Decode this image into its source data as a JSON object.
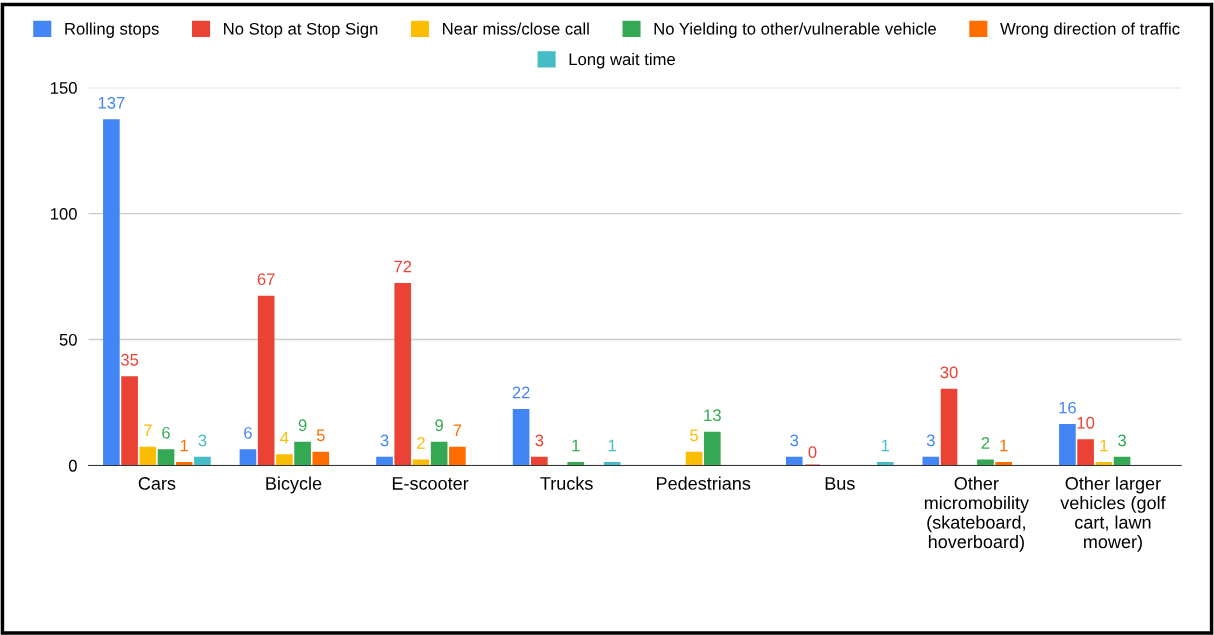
{
  "chart_data": {
    "type": "bar",
    "categories": [
      "Cars",
      "Bicycle",
      "E-scooter",
      "Trucks",
      "Pedestrians",
      "Bus",
      "Other\nmicromobility\n(skateboard,\nhoverboard)",
      "Other larger\nvehicles (golf\ncart, lawn\nmower)"
    ],
    "series": [
      {
        "name": "Rolling stops",
        "color": "#4285f4",
        "values": [
          137,
          6,
          3,
          22,
          null,
          3,
          3,
          16
        ]
      },
      {
        "name": "No Stop at Stop Sign",
        "color": "#ea4335",
        "values": [
          35,
          67,
          72,
          3,
          null,
          0,
          30,
          10
        ]
      },
      {
        "name": "Near miss/close call",
        "color": "#fbbc04",
        "values": [
          7,
          4,
          2,
          null,
          5,
          null,
          null,
          1
        ]
      },
      {
        "name": "No Yielding to other/vulnerable vehicle",
        "color": "#34a853",
        "values": [
          6,
          9,
          9,
          1,
          13,
          null,
          2,
          3
        ]
      },
      {
        "name": "Wrong direction of traffic",
        "color": "#ff6d01",
        "values": [
          1,
          5,
          7,
          null,
          null,
          null,
          1,
          null
        ]
      },
      {
        "name": "Long wait time",
        "color": "#46bdc6",
        "values": [
          3,
          null,
          null,
          1,
          null,
          1,
          null,
          null
        ]
      }
    ],
    "ylim": [
      0,
      150
    ],
    "yticks": [
      0,
      50,
      100,
      150
    ],
    "grid": "y",
    "legend": "top",
    "data_labels": true
  }
}
